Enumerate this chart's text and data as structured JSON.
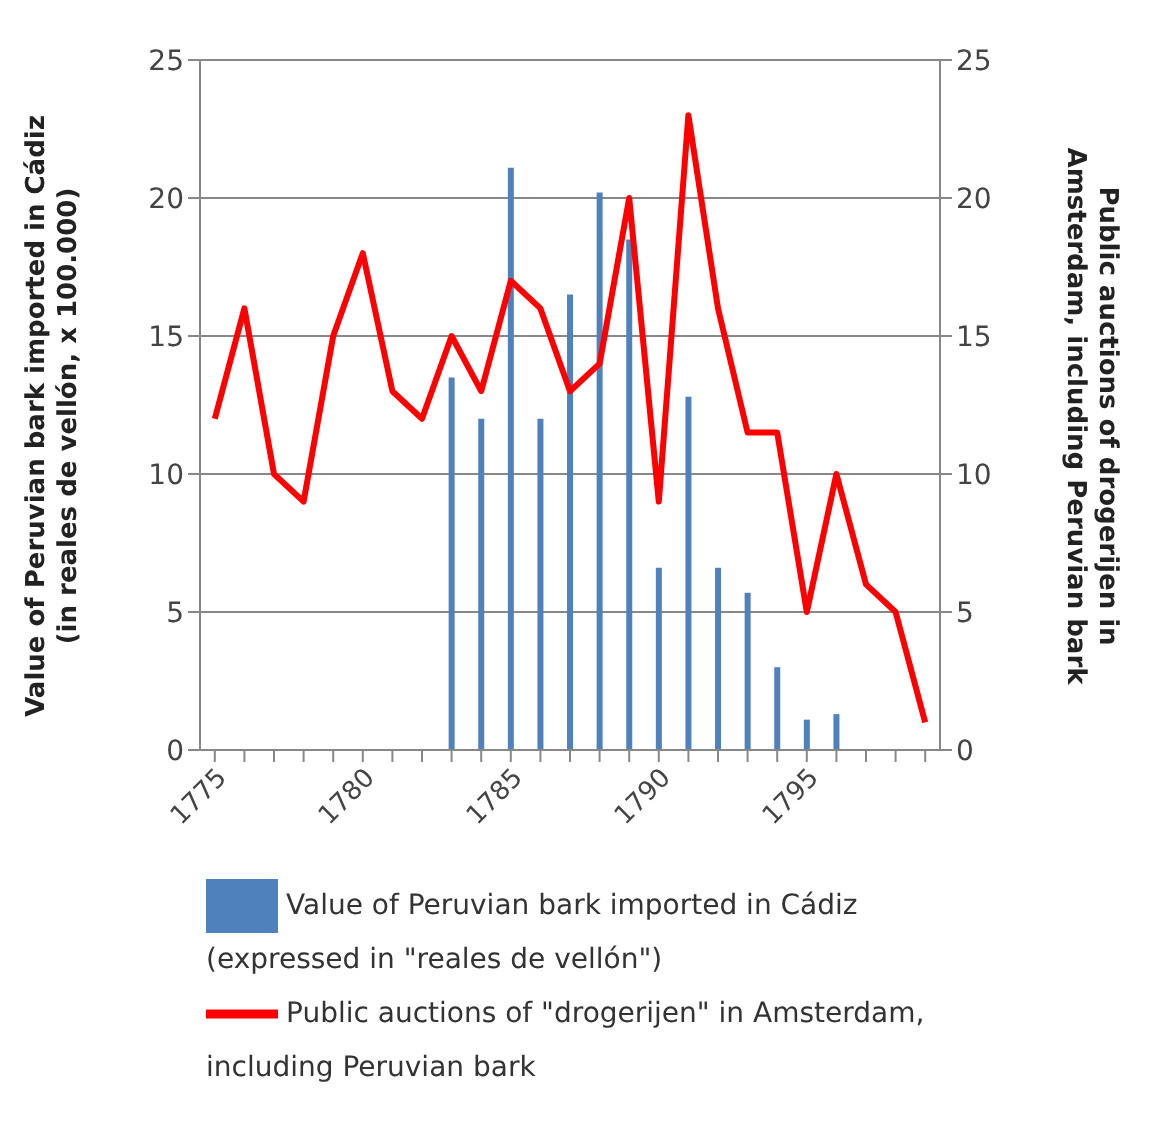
{
  "chart_data": {
    "type": "bar",
    "ylabel": "Value of Peruvian bark imported in Cádiz (in reales de vellón, x 100.000)",
    "y2label": "Public auctions of drogerijen in Amsterdam, including Peruvian bark",
    "categories": [
      "1775",
      null,
      null,
      null,
      null,
      "1780",
      null,
      null,
      null,
      null,
      "1785",
      null,
      null,
      null,
      null,
      "1790",
      null,
      null,
      null,
      null,
      "1795",
      null,
      null,
      null,
      null
    ],
    "series": [
      {
        "name": "Value of Peruvian bark imported in Cádiz (expressed in \"reales de vellón\")",
        "color": "#4f81bd",
        "values": [
          null,
          null,
          null,
          null,
          null,
          null,
          null,
          null,
          13.5,
          12,
          21.1,
          12,
          16.5,
          20.2,
          18.5,
          6.6,
          12.8,
          6.6,
          5.7,
          3,
          1.1,
          1.3,
          null,
          null,
          null
        ]
      },
      {
        "name": "Public auctions of \"drogerijen\" in Amsterdam, including Peruvian bark",
        "type": "line",
        "axis": "y2",
        "color": "#ff0000",
        "values": [
          12,
          16,
          10,
          9,
          15,
          18,
          13,
          12,
          15,
          13,
          17,
          16,
          13,
          14,
          20,
          9,
          23,
          16,
          11.5,
          11.5,
          5,
          10,
          6,
          5,
          1
        ]
      }
    ],
    "ylim": [
      0,
      25
    ],
    "yticks": [
      0,
      5,
      10,
      15,
      20,
      25
    ],
    "y2lim": [
      0,
      25
    ],
    "y2ticks": [
      0,
      5,
      10,
      15,
      20,
      25
    ],
    "grid": "y",
    "legend": "bottom",
    "marker": "none"
  }
}
